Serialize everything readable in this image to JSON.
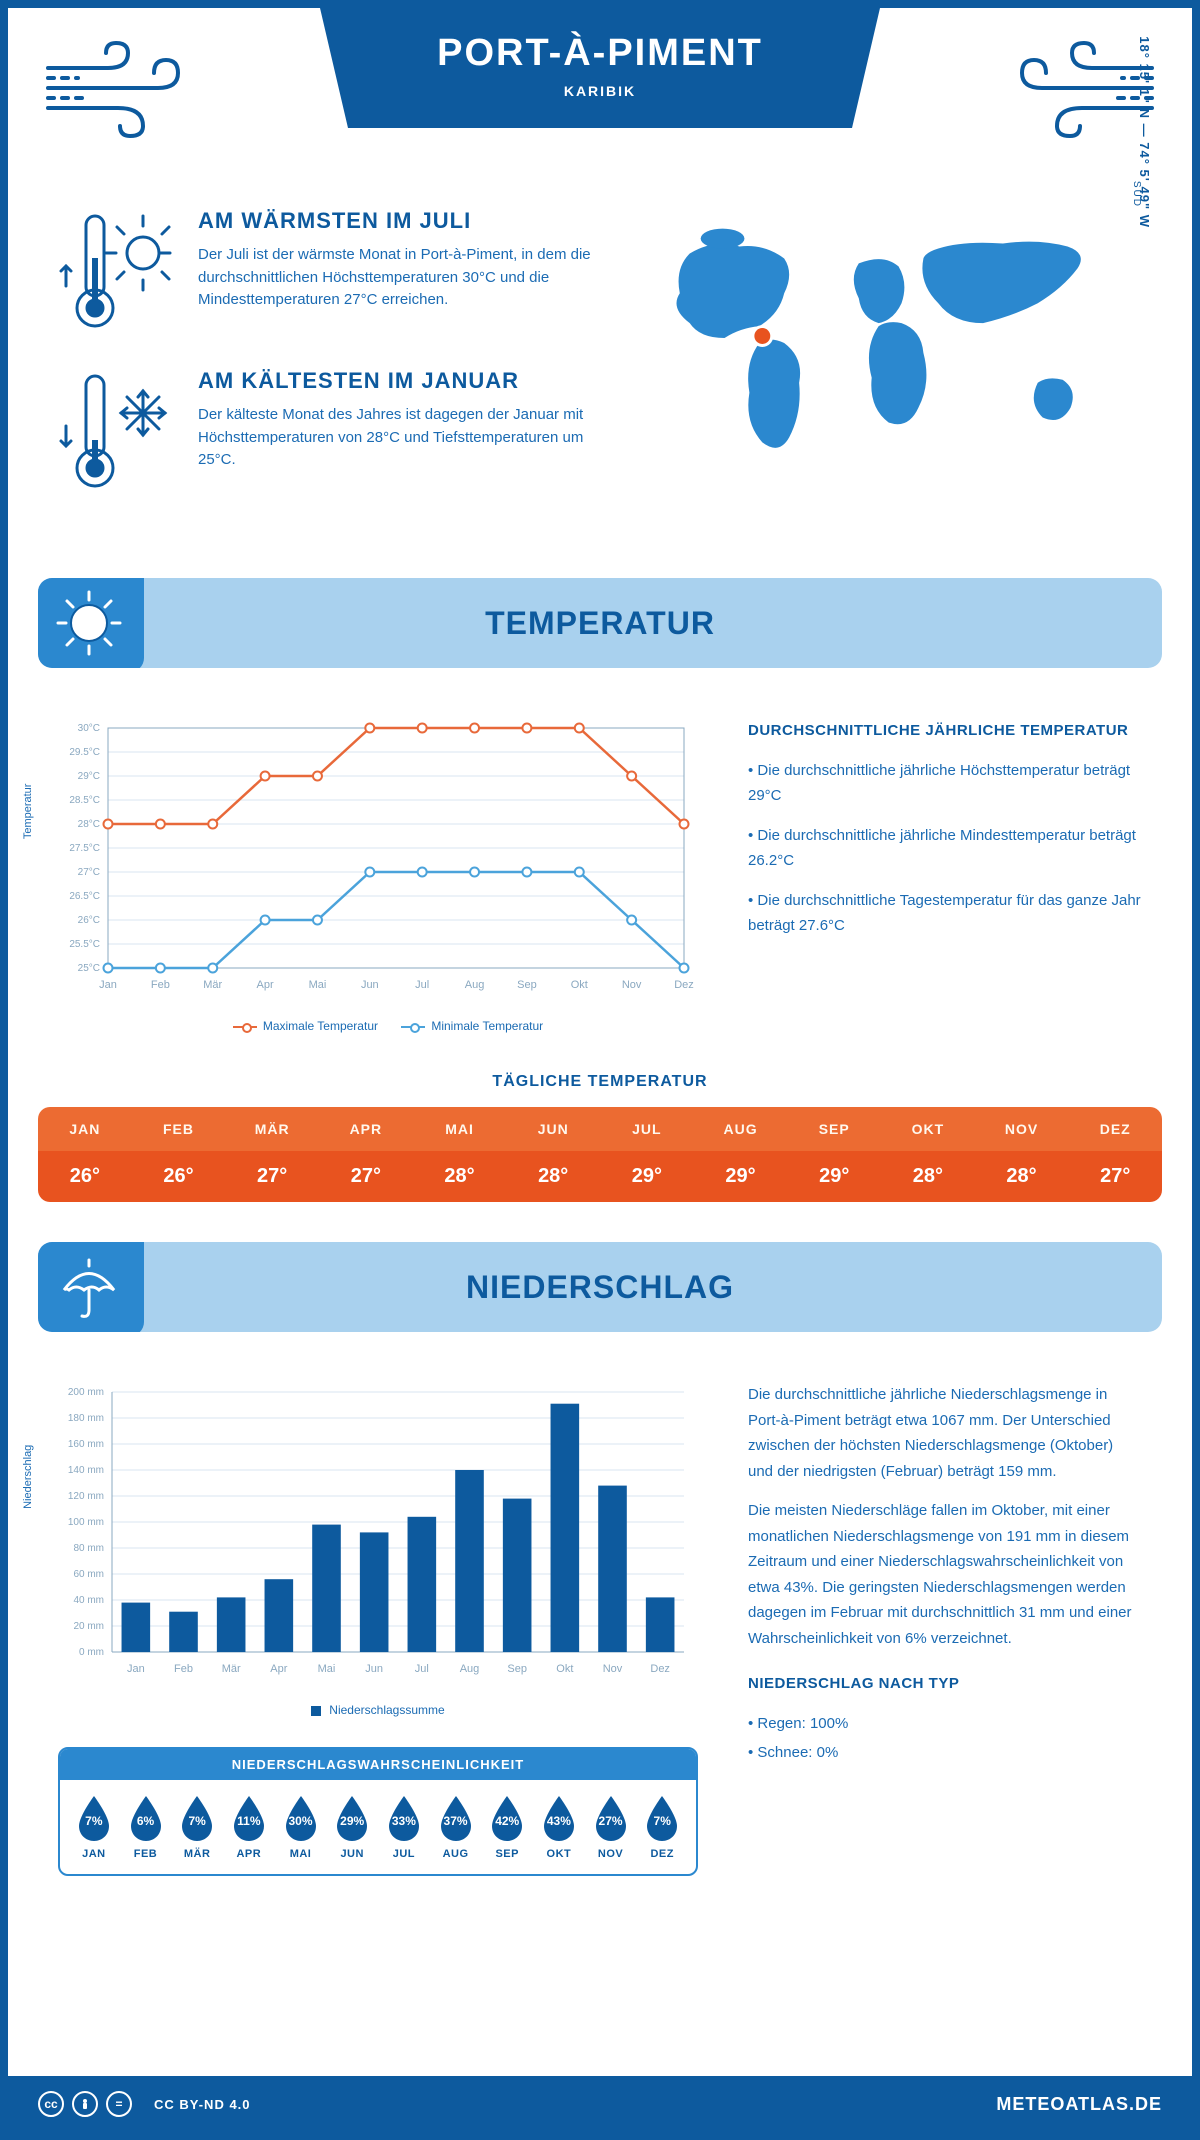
{
  "header": {
    "title": "PORT-À-PIMENT",
    "region": "KARIBIK",
    "coords": "18° 15' 1\" N — 74° 5' 49\" W",
    "sud": "SUD"
  },
  "summary": {
    "warm": {
      "title": "AM WÄRMSTEN IM JULI",
      "body": "Der Juli ist der wärmste Monat in Port-à-Piment, in dem die durchschnittlichen Höchsttemperaturen 30°C und die Mindesttemperaturen 27°C erreichen."
    },
    "cold": {
      "title": "AM KÄLTESTEN IM JANUAR",
      "body": "Der kälteste Monat des Jahres ist dagegen der Januar mit Höchsttemperaturen von 28°C und Tiefsttemperaturen um 25°C."
    }
  },
  "temp_section": {
    "title": "TEMPERATUR"
  },
  "precip_section": {
    "title": "NIEDERSCHLAG"
  },
  "temp_chart": {
    "months": [
      "Jan",
      "Feb",
      "Mär",
      "Apr",
      "Mai",
      "Jun",
      "Jul",
      "Aug",
      "Sep",
      "Okt",
      "Nov",
      "Dez"
    ],
    "max": [
      28,
      28,
      28,
      29,
      29,
      30,
      30,
      30,
      30,
      30,
      29,
      28
    ],
    "min": [
      25,
      25,
      25,
      26,
      26,
      27,
      27,
      27,
      27,
      27,
      26,
      25
    ],
    "ylim": [
      25,
      30
    ],
    "ytick_step": 0.5,
    "grid_color": "#d9e6f1",
    "max_color": "#e8693a",
    "min_color": "#4ba3db",
    "axis_color": "#8aa8c0",
    "ylabel": "Temperatur",
    "legend_max": "Maximale Temperatur",
    "legend_min": "Minimale Temperatur"
  },
  "temp_info": {
    "title": "DURCHSCHNITTLICHE JÄHRLICHE TEMPERATUR",
    "p1": "• Die durchschnittliche jährliche Höchsttemperatur beträgt 29°C",
    "p2": "• Die durchschnittliche jährliche Mindesttemperatur beträgt 26.2°C",
    "p3": "• Die durchschnittliche Tagestemperatur für das ganze Jahr beträgt 27.6°C"
  },
  "daily": {
    "title": "TÄGLICHE TEMPERATUR",
    "months": [
      "JAN",
      "FEB",
      "MÄR",
      "APR",
      "MAI",
      "JUN",
      "JUL",
      "AUG",
      "SEP",
      "OKT",
      "NOV",
      "DEZ"
    ],
    "values": [
      "26°",
      "26°",
      "27°",
      "27°",
      "28°",
      "28°",
      "29°",
      "29°",
      "29°",
      "28°",
      "28°",
      "27°"
    ],
    "head_bg": "#ec6b32",
    "val_bg": "#e8531f"
  },
  "precip_chart": {
    "months": [
      "Jan",
      "Feb",
      "Mär",
      "Apr",
      "Mai",
      "Jun",
      "Jul",
      "Aug",
      "Sep",
      "Okt",
      "Nov",
      "Dez"
    ],
    "values": [
      38,
      31,
      42,
      56,
      98,
      92,
      104,
      140,
      118,
      191,
      128,
      42
    ],
    "ylim": [
      0,
      200
    ],
    "ytick_step": 20,
    "bar_color": "#0d5a9e",
    "grid_color": "#d9e6f1",
    "axis_color": "#8aa8c0",
    "ylabel": "Niederschlag",
    "legend": "Niederschlagssumme"
  },
  "precip_prob": {
    "title": "NIEDERSCHLAGSWAHRSCHEINLICHKEIT",
    "months": [
      "JAN",
      "FEB",
      "MÄR",
      "APR",
      "MAI",
      "JUN",
      "JUL",
      "AUG",
      "SEP",
      "OKT",
      "NOV",
      "DEZ"
    ],
    "pct": [
      "7%",
      "6%",
      "7%",
      "11%",
      "30%",
      "29%",
      "33%",
      "37%",
      "42%",
      "43%",
      "27%",
      "7%"
    ],
    "drop_color": "#0d5a9e"
  },
  "precip_info": {
    "p1": "Die durchschnittliche jährliche Niederschlagsmenge in Port-à-Piment beträgt etwa 1067 mm. Der Unterschied zwischen der höchsten Niederschlagsmenge (Oktober) und der niedrigsten (Februar) beträgt 159 mm.",
    "p2": "Die meisten Niederschläge fallen im Oktober, mit einer monatlichen Niederschlagsmenge von 191 mm in diesem Zeitraum und einer Niederschlagswahrscheinlichkeit von etwa 43%. Die geringsten Niederschlagsmengen werden dagegen im Februar mit durchschnittlich 31 mm und einer Wahrscheinlichkeit von 6% verzeichnet.",
    "type_title": "NIEDERSCHLAG NACH TYP",
    "type1": "• Regen: 100%",
    "type2": "• Schnee: 0%"
  },
  "footer": {
    "cc": "CC BY-ND 4.0",
    "site": "METEOATLAS.DE"
  },
  "colors": {
    "primary": "#0d5a9e",
    "light": "#a9d1ee",
    "medium": "#2b88cf"
  }
}
